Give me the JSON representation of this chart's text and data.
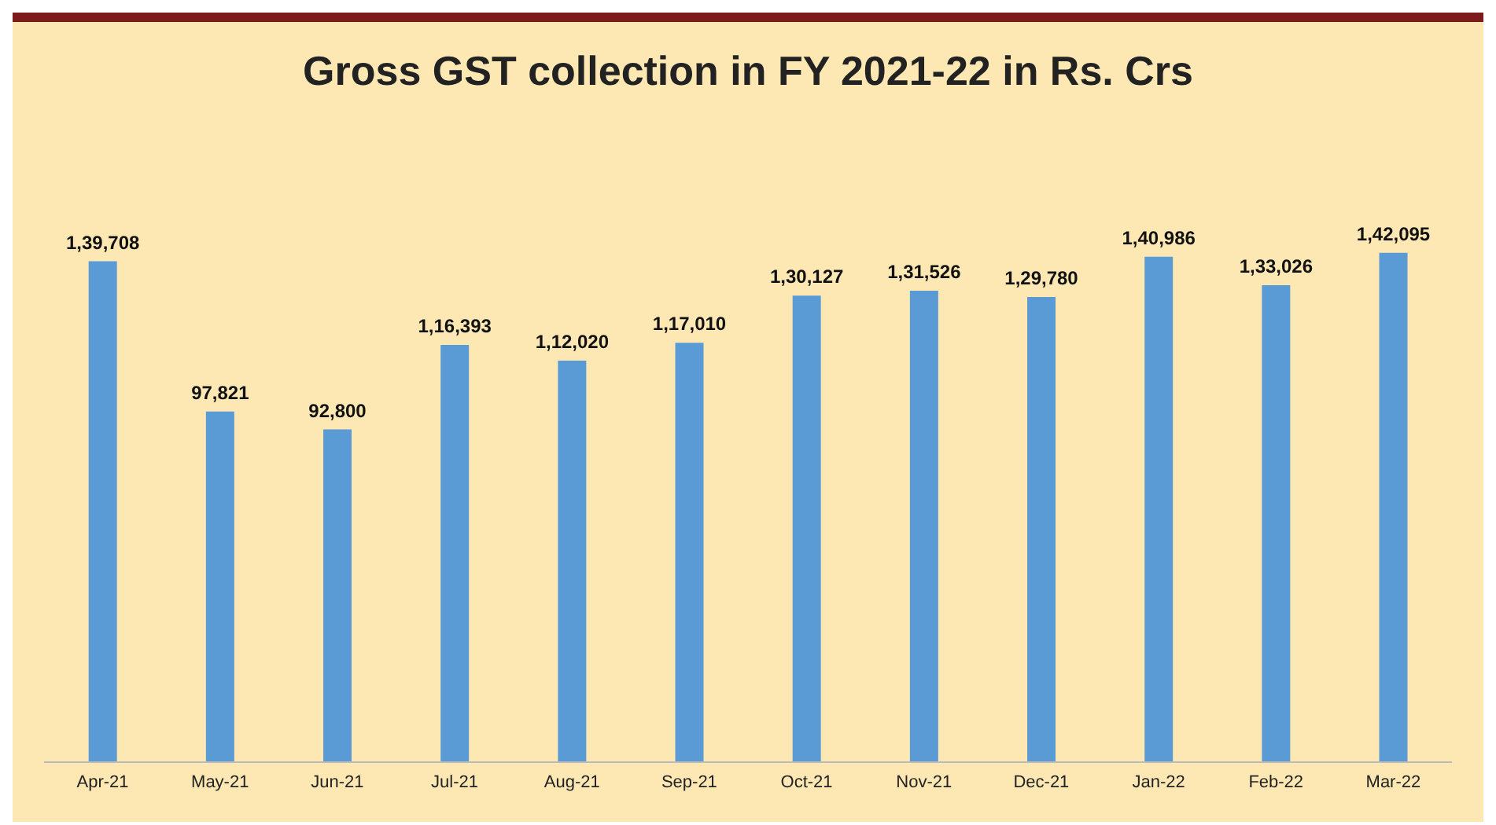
{
  "chart_data": {
    "type": "bar",
    "title": "Gross GST collection in FY 2021-22 in Rs. Crs",
    "categories": [
      "Apr-21",
      "May-21",
      "Jun-21",
      "Jul-21",
      "Aug-21",
      "Sep-21",
      "Oct-21",
      "Nov-21",
      "Dec-21",
      "Jan-22",
      "Feb-22",
      "Mar-22"
    ],
    "values": [
      139708,
      97821,
      92800,
      116393,
      112020,
      117010,
      130127,
      131526,
      129780,
      140986,
      133026,
      142095
    ],
    "value_labels": [
      "1,39,708",
      "97,821",
      "92,800",
      "1,16,393",
      "1,12,020",
      "1,17,010",
      "1,30,127",
      "1,31,526",
      "1,29,780",
      "1,40,986",
      "1,33,026",
      "1,42,095"
    ],
    "color": "#5b9bd5"
  }
}
